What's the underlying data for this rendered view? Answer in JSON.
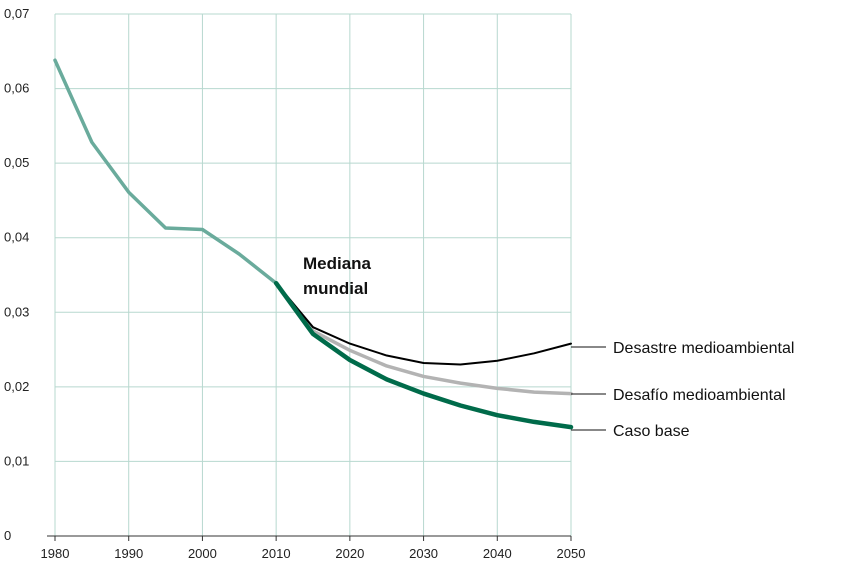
{
  "chart_data": {
    "type": "line",
    "x": [
      1980,
      1985,
      1990,
      1995,
      2000,
      2005,
      2010,
      2015,
      2020,
      2025,
      2030,
      2035,
      2040,
      2045,
      2050
    ],
    "xlim": [
      1980,
      2050
    ],
    "ylim": [
      0,
      0.07
    ],
    "xticks": [
      "1980",
      "1990",
      "2000",
      "2010",
      "2020",
      "2030",
      "2040",
      "2050"
    ],
    "yticks": [
      "0",
      "0,01",
      "0,02",
      "0,03",
      "0,04",
      "0,05",
      "0,06",
      "0,07"
    ],
    "grid": true,
    "annotation": "Mediana mundial",
    "series": [
      {
        "key": "historical",
        "color": "#6aab9c",
        "values": [
          0.0638,
          0.0528,
          0.0461,
          0.0413,
          0.0411,
          0.0378,
          0.0339,
          null,
          null,
          null,
          null,
          null,
          null,
          null,
          null
        ]
      },
      {
        "key": "desafio",
        "name": "Desafío medioambiental",
        "color": "#b3b3b3",
        "values": [
          null,
          null,
          null,
          null,
          null,
          null,
          0.0339,
          0.0275,
          0.0249,
          0.0228,
          0.0214,
          0.0205,
          0.0198,
          0.0193,
          0.0191
        ]
      },
      {
        "key": "desastre",
        "name": "Desastre medioambiental",
        "color": "#000000",
        "values": [
          null,
          null,
          null,
          null,
          null,
          null,
          0.0339,
          0.028,
          0.0258,
          0.0242,
          0.0232,
          0.023,
          0.0235,
          0.0245,
          0.0258
        ]
      },
      {
        "key": "base",
        "name": "Caso base",
        "color": "#006b4a",
        "values": [
          null,
          null,
          null,
          null,
          null,
          null,
          0.0339,
          0.0271,
          0.0236,
          0.021,
          0.0191,
          0.0175,
          0.0162,
          0.0153,
          0.0146
        ]
      }
    ]
  }
}
